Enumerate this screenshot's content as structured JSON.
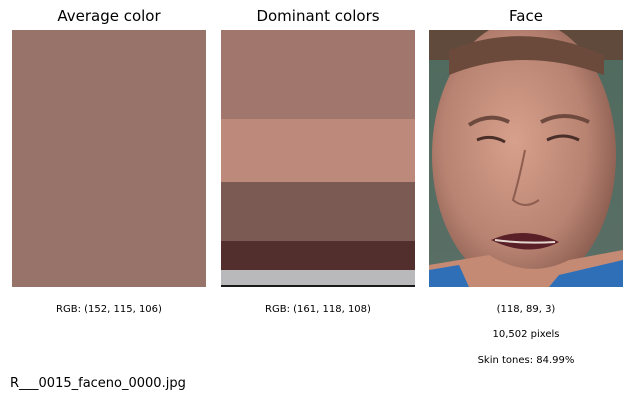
{
  "chart_data": [
    {
      "type": "image",
      "title": "Average color",
      "swatch": "#98736a",
      "caption": "RGB: (152, 115, 106)"
    },
    {
      "type": "bar",
      "title": "Dominant colors",
      "bands": [
        {
          "color": "#a1766c",
          "share": 0.346
        },
        {
          "color": "#bc897b",
          "share": 0.245
        },
        {
          "color": "#7b5a53",
          "share": 0.229
        },
        {
          "color": "#522f2c",
          "share": 0.113
        },
        {
          "color": "#b9b9bb",
          "share": 0.058
        },
        {
          "color": "#1a1a1a",
          "share": 0.009
        }
      ],
      "caption": "RGB: (161, 118, 108)"
    },
    {
      "type": "image",
      "title": "Face",
      "captions": [
        "(118, 89, 3)",
        "10,502 pixels",
        "Skin tones: 84.99%"
      ]
    }
  ],
  "filename": "R___0015_faceno_0000.jpg"
}
